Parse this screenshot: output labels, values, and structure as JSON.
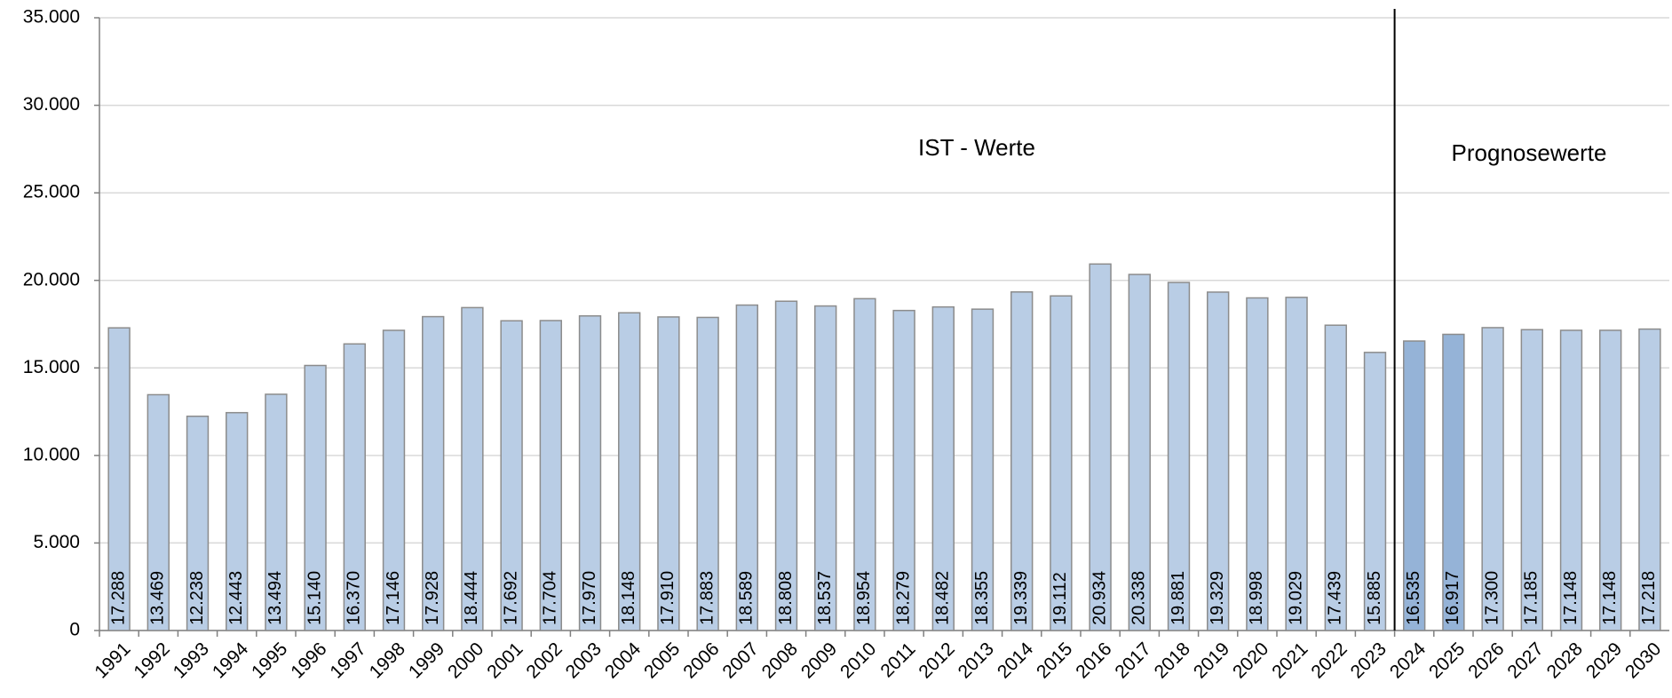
{
  "chart_data": {
    "type": "bar",
    "categories": [
      "1991",
      "1992",
      "1993",
      "1994",
      "1995",
      "1996",
      "1997",
      "1998",
      "1999",
      "2000",
      "2001",
      "2002",
      "2003",
      "2004",
      "2005",
      "2006",
      "2007",
      "2008",
      "2009",
      "2010",
      "2011",
      "2012",
      "2013",
      "2014",
      "2015",
      "2016",
      "2017",
      "2018",
      "2019",
      "2020",
      "2021",
      "2022",
      "2023",
      "2024",
      "2025",
      "2026",
      "2027",
      "2028",
      "2029",
      "2030"
    ],
    "values": [
      17288,
      13469,
      12238,
      12443,
      13494,
      15140,
      16370,
      17146,
      17928,
      18444,
      17692,
      17704,
      17970,
      18148,
      17910,
      17883,
      18589,
      18808,
      18537,
      18954,
      18279,
      18482,
      18355,
      19339,
      19112,
      20934,
      20338,
      19881,
      19329,
      18998,
      19029,
      17439,
      15885,
      16535,
      16917,
      17300,
      17185,
      17148,
      17148,
      17218
    ],
    "value_labels": [
      "17.288",
      "13.469",
      "12.238",
      "12.443",
      "13.494",
      "15.140",
      "16.370",
      "17.146",
      "17.928",
      "18.444",
      "17.692",
      "17.704",
      "17.970",
      "18.148",
      "17.910",
      "17.883",
      "18.589",
      "18.808",
      "18.537",
      "18.954",
      "18.279",
      "18.482",
      "18.355",
      "19.339",
      "19.112",
      "20.934",
      "20.338",
      "19.881",
      "19.329",
      "18.998",
      "19.029",
      "17.439",
      "15.885",
      "16.535",
      "16.917",
      "17.300",
      "17.185",
      "17.148",
      "17.148",
      "17.218"
    ],
    "colors": [
      "#b9cde5",
      "#b9cde5",
      "#b9cde5",
      "#b9cde5",
      "#b9cde5",
      "#b9cde5",
      "#b9cde5",
      "#b9cde5",
      "#b9cde5",
      "#b9cde5",
      "#b9cde5",
      "#b9cde5",
      "#b9cde5",
      "#b9cde5",
      "#b9cde5",
      "#b9cde5",
      "#b9cde5",
      "#b9cde5",
      "#b9cde5",
      "#b9cde5",
      "#b9cde5",
      "#b9cde5",
      "#b9cde5",
      "#b9cde5",
      "#b9cde5",
      "#b9cde5",
      "#b9cde5",
      "#b9cde5",
      "#b9cde5",
      "#b9cde5",
      "#b9cde5",
      "#b9cde5",
      "#b9cde5",
      "#95b3d7",
      "#95b3d7",
      "#b9cde5",
      "#b9cde5",
      "#b9cde5",
      "#b9cde5",
      "#b9cde5"
    ],
    "ylim": [
      0,
      35000
    ],
    "yticks": [
      0,
      {
        "value": 5000,
        "label": "5.000"
      },
      {
        "value": 10000,
        "label": "10.000"
      },
      {
        "value": 15000,
        "label": "15.000"
      },
      {
        "value": 20000,
        "label": "20.000"
      },
      {
        "value": 25000,
        "label": "25.000"
      },
      {
        "value": 30000,
        "label": "30.000"
      },
      {
        "value": 35000,
        "label": "35.000"
      }
    ],
    "grid": true,
    "annotations": [
      "IST - Werte",
      "Prognosewerte"
    ]
  }
}
